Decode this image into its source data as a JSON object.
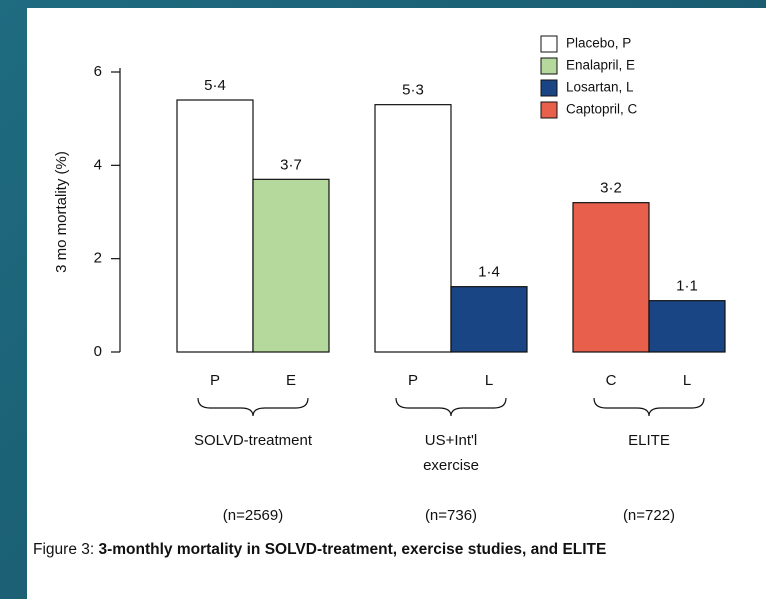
{
  "chart_data": {
    "type": "bar",
    "ylabel": "3 mo mortality (%)",
    "ylim": [
      0,
      6
    ],
    "yticks": [
      0,
      2,
      4,
      6
    ],
    "series": [
      {
        "name": "Placebo, P",
        "color": "#ffffff"
      },
      {
        "name": "Enalapril, E",
        "color": "#b5d99c"
      },
      {
        "name": "Losartan, L",
        "color": "#1a4585"
      },
      {
        "name": "Captopril, C",
        "color": "#e8604c"
      }
    ],
    "groups": [
      {
        "label": [
          "SOLVD-treatment"
        ],
        "n": "(n=2569)",
        "bars": [
          {
            "code": "P",
            "value": 5.4,
            "value_label": "5·4",
            "color": "#ffffff"
          },
          {
            "code": "E",
            "value": 3.7,
            "value_label": "3·7",
            "color": "#b5d99c"
          }
        ]
      },
      {
        "label": [
          "US+Int'l",
          "exercise"
        ],
        "n": "(n=736)",
        "bars": [
          {
            "code": "P",
            "value": 5.3,
            "value_label": "5·3",
            "color": "#ffffff"
          },
          {
            "code": "L",
            "value": 1.4,
            "value_label": "1·4",
            "color": "#1a4585"
          }
        ]
      },
      {
        "label": [
          "ELITE"
        ],
        "n": "(n=722)",
        "bars": [
          {
            "code": "C",
            "value": 3.2,
            "value_label": "3·2",
            "color": "#e8604c"
          },
          {
            "code": "L",
            "value": 1.1,
            "value_label": "1·1",
            "color": "#1a4585"
          }
        ]
      }
    ],
    "caption_prefix": "Figure 3:",
    "caption": "3-monthly mortality in SOLVD-treatment, exercise studies, and ELITE"
  }
}
